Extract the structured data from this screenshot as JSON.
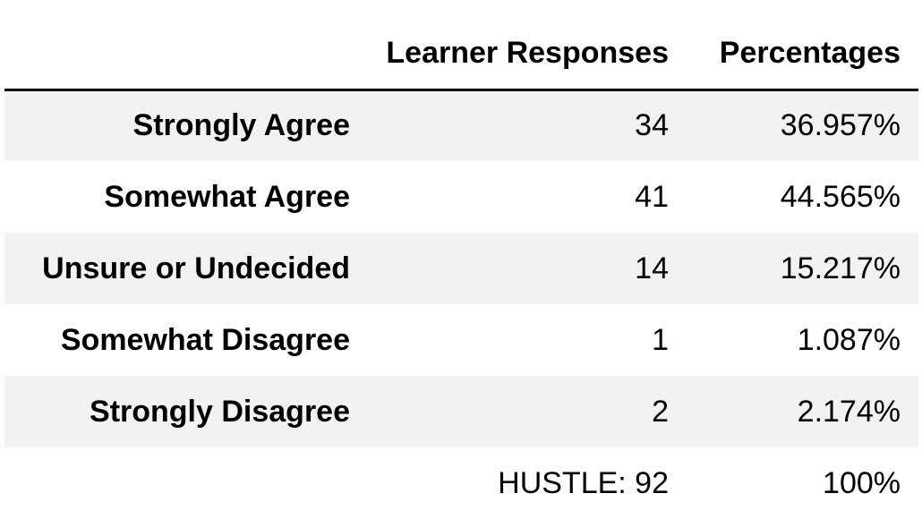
{
  "table": {
    "columns": [
      "",
      "Learner Responses",
      "Percentages"
    ],
    "rows": [
      {
        "label": "Strongly Agree",
        "responses": "34",
        "percentage": "36.957%"
      },
      {
        "label": "Somewhat Agree",
        "responses": "41",
        "percentage": "44.565%"
      },
      {
        "label": "Unsure or Undecided",
        "responses": "14",
        "percentage": "15.217%"
      },
      {
        "label": "Somewhat Disagree",
        "responses": "1",
        "percentage": "1.087%"
      },
      {
        "label": "Strongly Disagree",
        "responses": "2",
        "percentage": "2.174%"
      },
      {
        "label": "",
        "responses": "HUSTLE: 92",
        "percentage": "100%"
      }
    ]
  }
}
